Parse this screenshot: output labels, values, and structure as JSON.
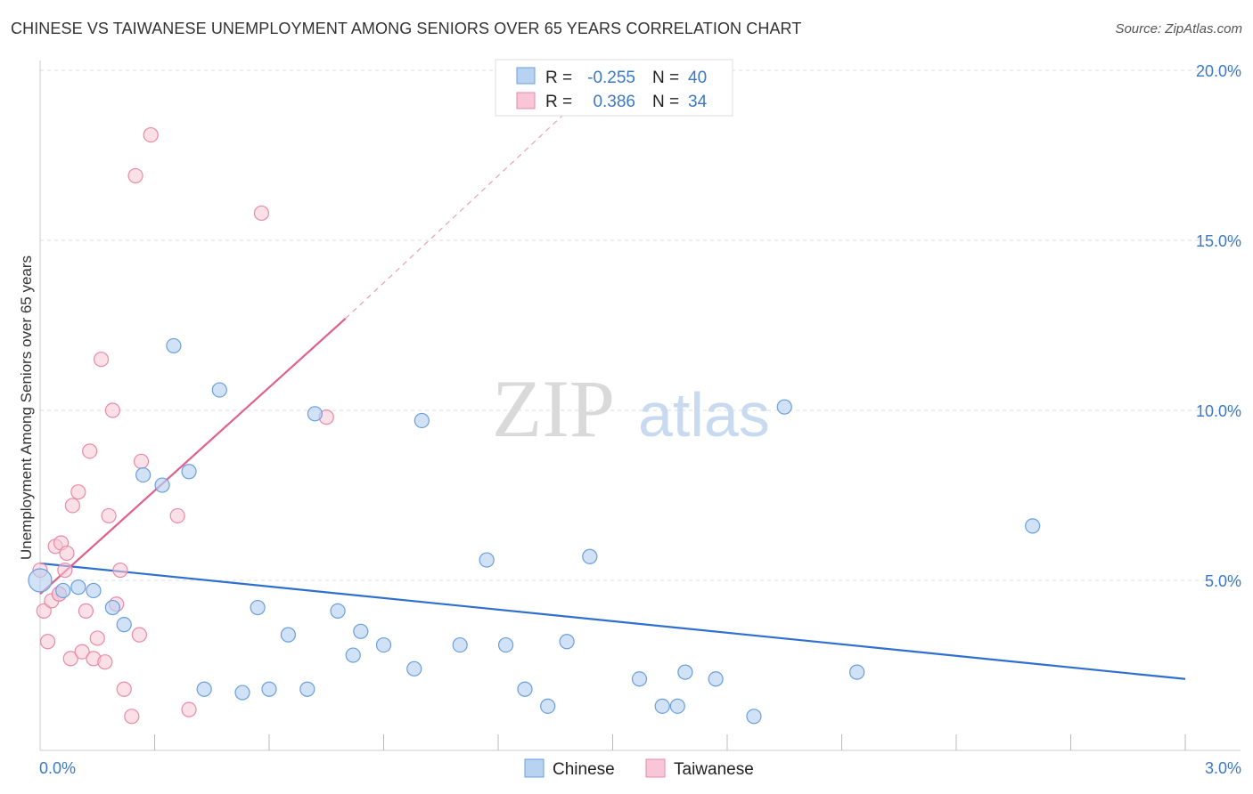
{
  "title": "CHINESE VS TAIWANESE UNEMPLOYMENT AMONG SENIORS OVER 65 YEARS CORRELATION CHART",
  "source": "Source: ZipAtlas.com",
  "watermark": {
    "zip": "ZIP",
    "atlas": "atlas"
  },
  "legend_box": [
    {
      "r_label": "R =",
      "r_value": "-0.255",
      "n_label": "N =",
      "n_value": "40"
    },
    {
      "r_label": "R =",
      "r_value": "0.386",
      "n_label": "N =",
      "n_value": "34"
    }
  ],
  "bottom_legend": [
    "Chinese",
    "Taiwanese"
  ],
  "colors": {
    "chinese_fill": "#b8d3f2",
    "chinese_stroke": "#6a9fdc",
    "chinese_line": "#2f6fce",
    "taiwanese_fill": "#f8c6d6",
    "taiwanese_stroke": "#e88aa8",
    "taiwanese_line": "#e0608b",
    "tick_text": "#3b78c8",
    "grid": "#dddddd"
  },
  "chart_data": {
    "type": "scatter",
    "title": "CHINESE VS TAIWANESE UNEMPLOYMENT AMONG SENIORS OVER 65 YEARS CORRELATION CHART",
    "xlabel": "",
    "ylabel": "Unemployment Among Seniors over 65 years",
    "xlim": [
      0,
      3.0
    ],
    "ylim": [
      0,
      20.5
    ],
    "x_tick_labels": [
      "0.0%",
      "3.0%"
    ],
    "y_ticks": [
      5,
      10,
      15,
      20
    ],
    "y_tick_labels": [
      "5.0%",
      "10.0%",
      "15.0%",
      "20.0%"
    ],
    "grid": true,
    "legend_placement": "top-center",
    "series": [
      {
        "name": "Chinese",
        "r": -0.255,
        "n": 40,
        "trend": {
          "x": [
            0.0,
            3.0
          ],
          "y": [
            5.5,
            2.1
          ],
          "style": "solid"
        },
        "points": [
          [
            0.0,
            5.0
          ],
          [
            0.06,
            4.7
          ],
          [
            0.1,
            4.8
          ],
          [
            0.14,
            4.7
          ],
          [
            0.19,
            4.2
          ],
          [
            0.22,
            3.7
          ],
          [
            0.27,
            8.1
          ],
          [
            0.32,
            7.8
          ],
          [
            0.35,
            11.9
          ],
          [
            0.39,
            8.2
          ],
          [
            0.43,
            1.8
          ],
          [
            0.47,
            10.6
          ],
          [
            0.53,
            1.7
          ],
          [
            0.57,
            4.2
          ],
          [
            0.6,
            1.8
          ],
          [
            0.65,
            3.4
          ],
          [
            0.7,
            1.8
          ],
          [
            0.72,
            9.9
          ],
          [
            0.78,
            4.1
          ],
          [
            0.82,
            2.8
          ],
          [
            0.84,
            3.5
          ],
          [
            0.9,
            3.1
          ],
          [
            0.98,
            2.4
          ],
          [
            1.0,
            9.7
          ],
          [
            1.1,
            3.1
          ],
          [
            1.17,
            5.6
          ],
          [
            1.22,
            3.1
          ],
          [
            1.27,
            1.8
          ],
          [
            1.33,
            1.3
          ],
          [
            1.38,
            3.2
          ],
          [
            1.44,
            5.7
          ],
          [
            1.57,
            2.1
          ],
          [
            1.63,
            1.3
          ],
          [
            1.67,
            1.3
          ],
          [
            1.69,
            2.3
          ],
          [
            1.77,
            2.1
          ],
          [
            1.87,
            1.0
          ],
          [
            1.95,
            10.1
          ],
          [
            2.14,
            2.3
          ],
          [
            2.6,
            6.6
          ]
        ]
      },
      {
        "name": "Taiwanese",
        "r": 0.386,
        "n": 34,
        "trend": {
          "x": [
            0.0,
            0.8
          ],
          "y": [
            4.6,
            12.7
          ],
          "style": "solid",
          "extended_x": [
            0.8,
            1.4
          ],
          "extended_y": [
            12.7,
            19.0
          ],
          "extended_style": "dashed"
        },
        "points": [
          [
            0.0,
            5.3
          ],
          [
            0.01,
            4.1
          ],
          [
            0.02,
            3.2
          ],
          [
            0.03,
            4.4
          ],
          [
            0.04,
            6.0
          ],
          [
            0.05,
            4.6
          ],
          [
            0.055,
            6.1
          ],
          [
            0.065,
            5.3
          ],
          [
            0.07,
            5.8
          ],
          [
            0.08,
            2.7
          ],
          [
            0.085,
            7.2
          ],
          [
            0.1,
            7.6
          ],
          [
            0.11,
            2.9
          ],
          [
            0.12,
            4.1
          ],
          [
            0.13,
            8.8
          ],
          [
            0.14,
            2.7
          ],
          [
            0.15,
            3.3
          ],
          [
            0.16,
            11.5
          ],
          [
            0.17,
            2.6
          ],
          [
            0.18,
            6.9
          ],
          [
            0.19,
            10.0
          ],
          [
            0.2,
            4.3
          ],
          [
            0.21,
            5.3
          ],
          [
            0.22,
            1.8
          ],
          [
            0.24,
            1.0
          ],
          [
            0.25,
            16.9
          ],
          [
            0.26,
            3.4
          ],
          [
            0.265,
            8.5
          ],
          [
            0.29,
            18.1
          ],
          [
            0.36,
            6.9
          ],
          [
            0.39,
            1.2
          ],
          [
            0.58,
            15.8
          ],
          [
            0.75,
            9.8
          ],
          [
            0.05,
            4.6
          ]
        ]
      }
    ]
  }
}
